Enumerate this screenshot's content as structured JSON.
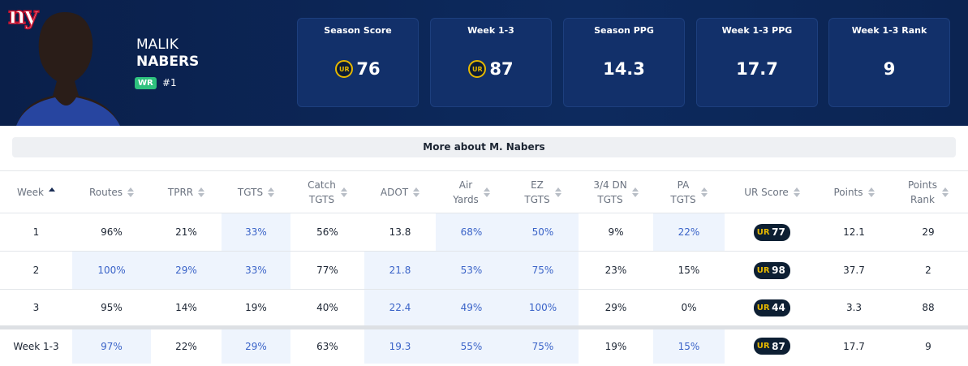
{
  "header": {
    "team_logo": "ny",
    "first_name": "MALIK",
    "last_name": "NABERS",
    "position": "WR",
    "rank": "#1",
    "logo_text": "UR"
  },
  "cards": [
    {
      "label": "Season Score",
      "value": "76",
      "logo": true
    },
    {
      "label": "Week 1-3",
      "value": "87",
      "logo": true
    },
    {
      "label": "Season PPG",
      "value": "14.3",
      "logo": false
    },
    {
      "label": "Week 1-3 PPG",
      "value": "17.7",
      "logo": false
    },
    {
      "label": "Week 1-3 Rank",
      "value": "9",
      "logo": false
    }
  ],
  "more_button": "More about M. Nabers",
  "table": {
    "headers": [
      [
        "Week"
      ],
      [
        "Routes"
      ],
      [
        "TPRR"
      ],
      [
        "TGTS"
      ],
      [
        "Catch",
        "TGTS"
      ],
      [
        "ADOT"
      ],
      [
        "Air",
        "Yards"
      ],
      [
        "EZ",
        "TGTS"
      ],
      [
        "3/4 DN",
        "TGTS"
      ],
      [
        "PA",
        "TGTS"
      ],
      [
        "UR Score"
      ],
      [
        "Points"
      ],
      [
        "Points",
        "Rank"
      ]
    ],
    "sorted_column": 0,
    "badge_column": 10,
    "rows": [
      {
        "cells": [
          "1",
          "96%",
          "21%",
          "33%",
          "56%",
          "13.8",
          "68%",
          "50%",
          "9%",
          "22%",
          "77",
          "12.1",
          "29"
        ],
        "highlight": [
          false,
          false,
          false,
          true,
          false,
          false,
          true,
          true,
          false,
          true,
          false,
          false,
          false
        ]
      },
      {
        "cells": [
          "2",
          "100%",
          "29%",
          "33%",
          "77%",
          "21.8",
          "53%",
          "75%",
          "23%",
          "15%",
          "98",
          "37.7",
          "2"
        ],
        "highlight": [
          false,
          true,
          true,
          true,
          false,
          true,
          true,
          true,
          false,
          false,
          false,
          false,
          false
        ]
      },
      {
        "cells": [
          "3",
          "95%",
          "14%",
          "19%",
          "40%",
          "22.4",
          "49%",
          "100%",
          "29%",
          "0%",
          "44",
          "3.3",
          "88"
        ],
        "highlight": [
          false,
          false,
          false,
          false,
          false,
          true,
          true,
          true,
          false,
          false,
          false,
          false,
          false
        ]
      }
    ],
    "total": {
      "cells": [
        "Week 1-3",
        "97%",
        "22%",
        "29%",
        "63%",
        "19.3",
        "55%",
        "75%",
        "19%",
        "15%",
        "87",
        "17.7",
        "9"
      ],
      "highlight": [
        false,
        true,
        false,
        true,
        false,
        true,
        true,
        true,
        false,
        true,
        false,
        false,
        false
      ]
    }
  }
}
